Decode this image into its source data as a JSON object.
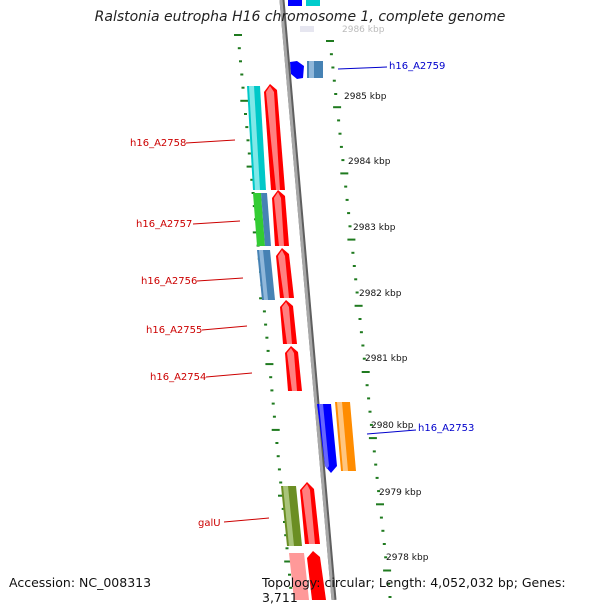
{
  "title": "Ralstonia eutropha H16 chromosome 1, complete genome",
  "footer": {
    "accession": "Accession: NC_008313",
    "topology": "Topology: circular; Length: 4,052,032 bp; Genes: 3,711"
  },
  "colors": {
    "backbone": "#8c8c8c",
    "scale_tick": "#1f7a1f",
    "forward_label": "#0000cc",
    "reverse_label": "#cc0000"
  },
  "kbp_labels": [
    "2986 kbp",
    "2985 kbp",
    "2984 kbp",
    "2983 kbp",
    "2982 kbp",
    "2981 kbp",
    "2980 kbp",
    "2979 kbp",
    "2978 kbp"
  ],
  "genes": [
    {
      "name": "h16_A2759",
      "strand": "forward",
      "colors": [
        "#0000ff",
        "#4682b4"
      ]
    },
    {
      "name": "h16_A2758",
      "strand": "reverse",
      "colors": [
        "#00cccc",
        "#ff0000"
      ]
    },
    {
      "name": "h16_A2757",
      "strand": "reverse",
      "colors": [
        "#33cc33",
        "#4682b4",
        "#ff0000"
      ]
    },
    {
      "name": "h16_A2756",
      "strand": "reverse",
      "colors": [
        "#4682b4",
        "#ff0000"
      ]
    },
    {
      "name": "h16_A2755",
      "strand": "reverse",
      "colors": [
        "#ff0000"
      ]
    },
    {
      "name": "h16_A2754",
      "strand": "reverse",
      "colors": [
        "#ff0000"
      ]
    },
    {
      "name": "h16_A2753",
      "strand": "forward",
      "colors": [
        "#0000ff",
        "#ff8c00"
      ]
    },
    {
      "name": "galU",
      "strand": "reverse",
      "colors": [
        "#6b8e23",
        "#ff0000"
      ]
    }
  ]
}
